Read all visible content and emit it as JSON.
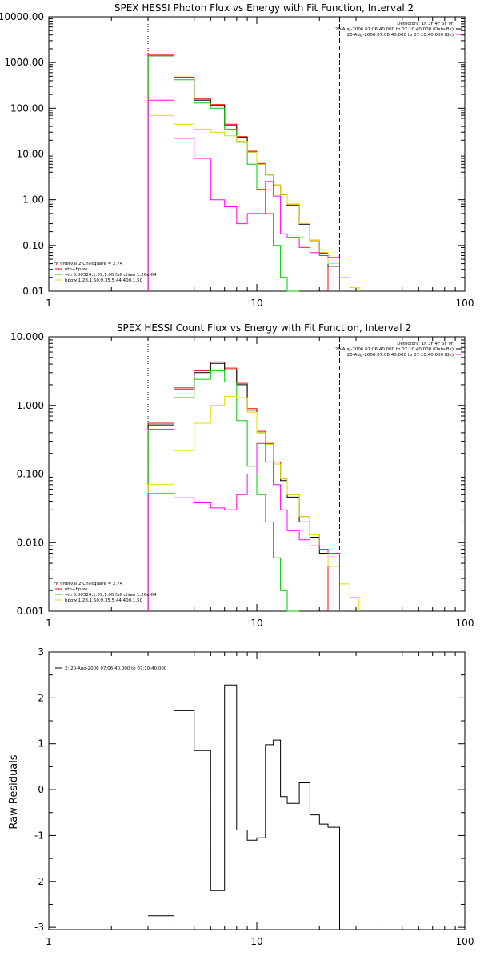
{
  "chart_data": [
    {
      "type": "line",
      "title": "SPEX HESSI Photon Flux vs Energy with Fit Function, Interval 2",
      "ylabel": "",
      "xscale": "log",
      "yscale": "log",
      "xlim": [
        1,
        100
      ],
      "ylim": [
        0.01,
        10000
      ],
      "xticks": [
        "1",
        "10",
        "100"
      ],
      "yticks": [
        "0.01",
        "0.10",
        "1.00",
        "10.00",
        "100.00",
        "1000.00",
        "10000.00"
      ],
      "yticks_values": [
        0.01,
        0.1,
        1,
        10,
        100,
        1000,
        10000
      ],
      "ref_lines": [
        {
          "x": 3,
          "style": "dotted"
        },
        {
          "x": 25,
          "style": "dashed"
        }
      ],
      "legend_right": [
        "Detectors: 1F 3F 4F 6F 9F",
        "20-Aug-2006 07:06:40.000 to 07:10:40.000 (Data-Bk)",
        "20-Aug-2006 07:06:40.000 to 07:10:40.000 (Bk)"
      ],
      "legend_right_colors": [
        "",
        "#000000",
        "#ff00ff"
      ],
      "legend_left": [
        "Fit Interval 2   Chi-square = 2.74",
        "vth+bpow",
        "vth 0.00324,1.09,1.00  full chian 1.26e-04",
        "bpow 1.28,1.50,9.35,5.44,400,1.50"
      ],
      "legend_left_colors": [
        "",
        "#ff0000",
        "#00cc00",
        "#dddd00"
      ],
      "edges": [
        3,
        4,
        5,
        6,
        7,
        8,
        9,
        10,
        11,
        12,
        13,
        14,
        16,
        18,
        20,
        22,
        25,
        28,
        31,
        35
      ],
      "series": [
        {
          "color": "#ff0000",
          "values": [
            1500,
            480,
            160,
            120,
            45,
            24,
            11.5,
            6.2,
            3.6,
            2.1,
            1.3,
            0.8,
            0.3,
            0.13,
            0.07,
            null,
            null,
            null,
            null
          ]
        },
        {
          "color": "#000000",
          "values": [
            1400,
            460,
            150,
            115,
            42,
            23,
            11,
            6,
            3.5,
            2.0,
            1.3,
            0.75,
            0.29,
            0.12,
            0.068,
            0.035,
            null,
            null,
            null
          ]
        },
        {
          "color": "#00cc00",
          "values": [
            1400,
            420,
            130,
            100,
            35,
            18,
            6,
            1.7,
            0.5,
            0.1,
            0.02,
            0.007,
            null,
            null,
            null,
            null,
            null,
            null,
            null
          ]
        },
        {
          "color": "#dddd00",
          "values": [
            70,
            45,
            35,
            30,
            25,
            19,
            11,
            6,
            3.5,
            2.1,
            1.3,
            0.8,
            0.3,
            0.13,
            0.07,
            0.04,
            0.02,
            0.012,
            null
          ]
        },
        {
          "color": "#ff00ff",
          "values": [
            150,
            22,
            8,
            1,
            0.7,
            0.3,
            0.5,
            0.5,
            2.5,
            1.2,
            0.18,
            0.15,
            0.09,
            0.07,
            0.06,
            0.055,
            null,
            null,
            null
          ]
        }
      ]
    },
    {
      "type": "line",
      "title": "SPEX HESSI Count Flux vs Energy with Fit Function, Interval 2",
      "ylabel": "",
      "xscale": "log",
      "yscale": "log",
      "xlim": [
        1,
        100
      ],
      "ylim": [
        0.001,
        10
      ],
      "xticks": [
        "1",
        "10",
        "100"
      ],
      "yticks": [
        "0.001",
        "0.010",
        "0.100",
        "1.000",
        "10.000"
      ],
      "yticks_values": [
        0.001,
        0.01,
        0.1,
        1,
        10
      ],
      "ref_lines": [
        {
          "x": 3,
          "style": "dotted"
        },
        {
          "x": 25,
          "style": "dashed"
        }
      ],
      "legend_right": [
        "Detectors: 1F 3F 4F 6F 9F",
        "20-Aug-2006 07:06:40.000 to 07:10:40.000 (Data-Bk)",
        "20-Aug-2006 07:06:40.000 to 07:10:40.000 (Bk)"
      ],
      "legend_right_colors": [
        "",
        "#000000",
        "#ff00ff"
      ],
      "legend_left": [
        "Fit Interval 2   Chi-square = 2.74",
        "vth+bpow",
        "vth 0.00324,1.09,1.00  full chian 1.26e-04",
        "bpow 1.28,1.50,9.35,5.44,400,1.50"
      ],
      "legend_left_colors": [
        "",
        "#ff0000",
        "#00cc00",
        "#dddd00"
      ],
      "edges": [
        3,
        4,
        5,
        6,
        7,
        8,
        9,
        10,
        11,
        12,
        13,
        14,
        16,
        18,
        20,
        22,
        25,
        28,
        31,
        35
      ],
      "series": [
        {
          "color": "#ff0000",
          "values": [
            0.55,
            1.8,
            3.2,
            4.3,
            3.5,
            2.1,
            0.9,
            0.42,
            0.28,
            0.15,
            0.085,
            0.05,
            0.024,
            0.013,
            0.008,
            null,
            null,
            null,
            null
          ]
        },
        {
          "color": "#000000",
          "values": [
            0.52,
            1.7,
            3.0,
            4.1,
            3.3,
            2.0,
            0.85,
            0.4,
            0.27,
            0.14,
            0.08,
            0.046,
            0.02,
            0.012,
            0.007,
            0.0045,
            null,
            null,
            null
          ]
        },
        {
          "color": "#00cc00",
          "values": [
            0.45,
            1.3,
            2.4,
            3.2,
            2.2,
            0.6,
            0.13,
            0.05,
            0.02,
            0.006,
            0.002,
            0.0008,
            null,
            null,
            null,
            null,
            null,
            null,
            null
          ]
        },
        {
          "color": "#dddd00",
          "values": [
            0.07,
            0.22,
            0.55,
            1.0,
            1.35,
            1.3,
            0.8,
            0.4,
            0.27,
            0.14,
            0.085,
            0.05,
            0.024,
            0.013,
            0.008,
            0.0045,
            0.0025,
            0.0016,
            null
          ]
        },
        {
          "color": "#ff00ff",
          "values": [
            0.052,
            0.045,
            0.038,
            0.032,
            0.03,
            0.05,
            0.1,
            0.28,
            0.15,
            0.07,
            0.03,
            0.015,
            0.011,
            0.009,
            0.008,
            0.007,
            null,
            null,
            null
          ]
        }
      ]
    },
    {
      "type": "line",
      "title": "",
      "ylabel": "Raw Residuals",
      "xscale": "log",
      "yscale": "linear",
      "xlim": [
        1,
        100
      ],
      "ylim": [
        -3.05,
        3
      ],
      "xticks": [
        "1",
        "10",
        "100"
      ],
      "yticks": [
        "3",
        "2",
        "1",
        "0",
        "-1",
        "-2",
        "-3"
      ],
      "yticks_values": [
        3,
        2,
        1,
        0,
        -1,
        -2,
        -3
      ],
      "legend_left": [
        "2: 20-Aug-2006 07:06:40.000 to 07:10:40.000"
      ],
      "legend_left_colors": [
        "#000000"
      ],
      "edges": [
        3,
        4,
        5,
        6,
        7,
        8,
        9,
        10,
        11,
        12,
        13,
        14,
        16,
        18,
        20,
        22,
        25
      ],
      "series": [
        {
          "color": "#000000",
          "values": [
            -2.75,
            1.72,
            0.85,
            -2.2,
            2.28,
            -0.88,
            -1.1,
            -1.05,
            0.98,
            1.08,
            -0.15,
            -0.3,
            0.15,
            -0.55,
            -0.75,
            -0.82
          ]
        }
      ]
    }
  ]
}
